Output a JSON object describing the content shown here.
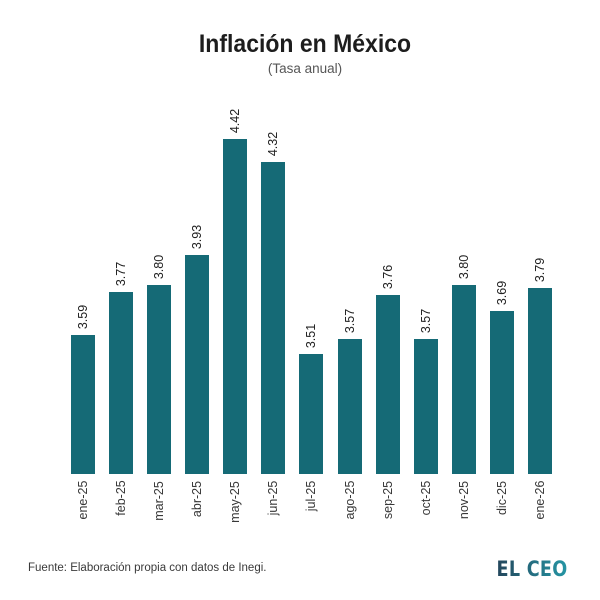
{
  "title": "Inflación en México",
  "subtitle": "(Tasa anual)",
  "chart_data": {
    "type": "bar",
    "categories": [
      "ene-25",
      "feb-25",
      "mar-25",
      "abr-25",
      "may-25",
      "jun-25",
      "jul-25",
      "ago-25",
      "sep-25",
      "oct-25",
      "nov-25",
      "dic-25",
      "ene-26"
    ],
    "values": [
      3.59,
      3.77,
      3.8,
      3.93,
      4.42,
      4.32,
      3.51,
      3.57,
      3.76,
      3.57,
      3.8,
      3.69,
      3.79
    ],
    "value_labels": [
      "3.59",
      "3.77",
      "3.80",
      "3.93",
      "4.42",
      "4.32",
      "3.51",
      "3.57",
      "3.76",
      "3.57",
      "3.80",
      "3.69",
      "3.79"
    ],
    "title": "Inflación en México",
    "subtitle": "(Tasa anual)",
    "xlabel": "",
    "ylabel": "",
    "ylim": [
      3.0,
      4.6
    ],
    "grid": false,
    "legend": false,
    "bar_color": "#156a76"
  },
  "footer": {
    "source": "Fuente: Elaboración propia con datos de Inegi.",
    "brand": "EL CEO"
  },
  "colors": {
    "bar": "#156a76",
    "title": "#1d1d1d",
    "subtitle": "#565656",
    "tick_label": "#383838",
    "value_label": "#222222",
    "brand_gradient_start": "#24465c",
    "brand_gradient_end": "#2595a4"
  }
}
